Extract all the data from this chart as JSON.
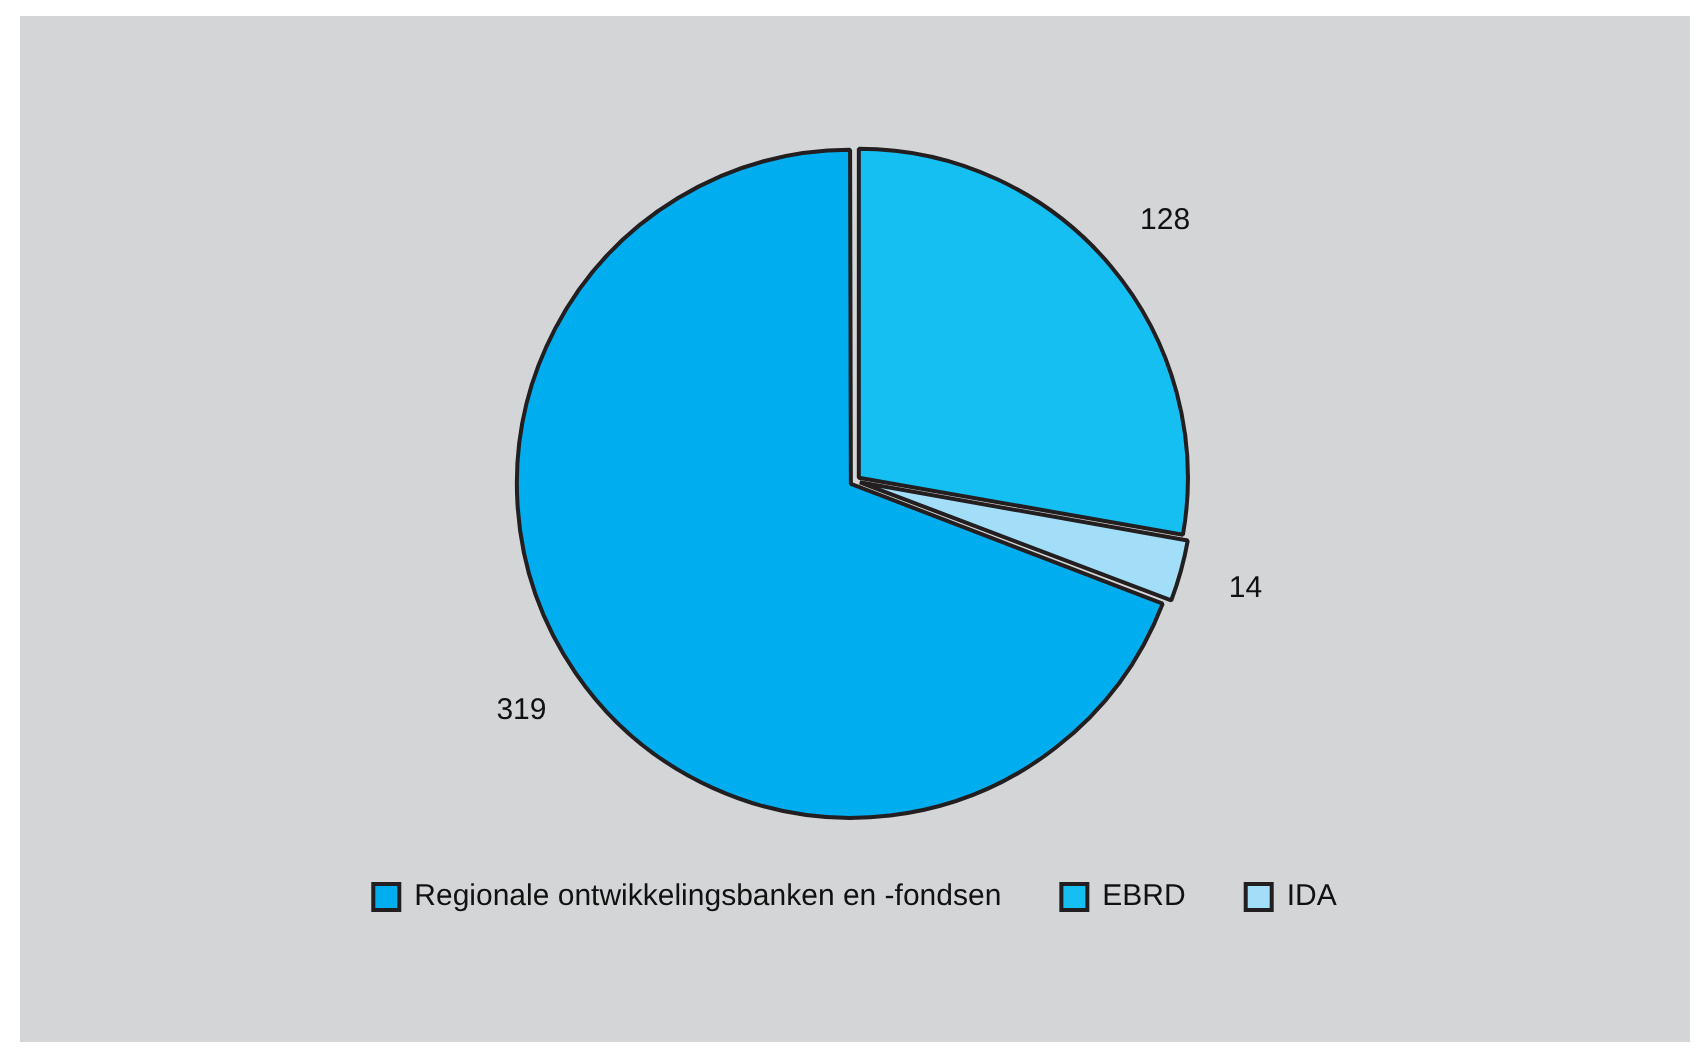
{
  "chart_data": {
    "type": "pie",
    "categories": [
      "Regionale ontwikkelingsbanken en -fondsen",
      "EBRD",
      "IDA"
    ],
    "values": [
      319,
      128,
      14
    ],
    "colors": [
      "#00adee",
      "#16bff2",
      "#a3def8"
    ],
    "data_labels": true,
    "legend": "bottom"
  }
}
